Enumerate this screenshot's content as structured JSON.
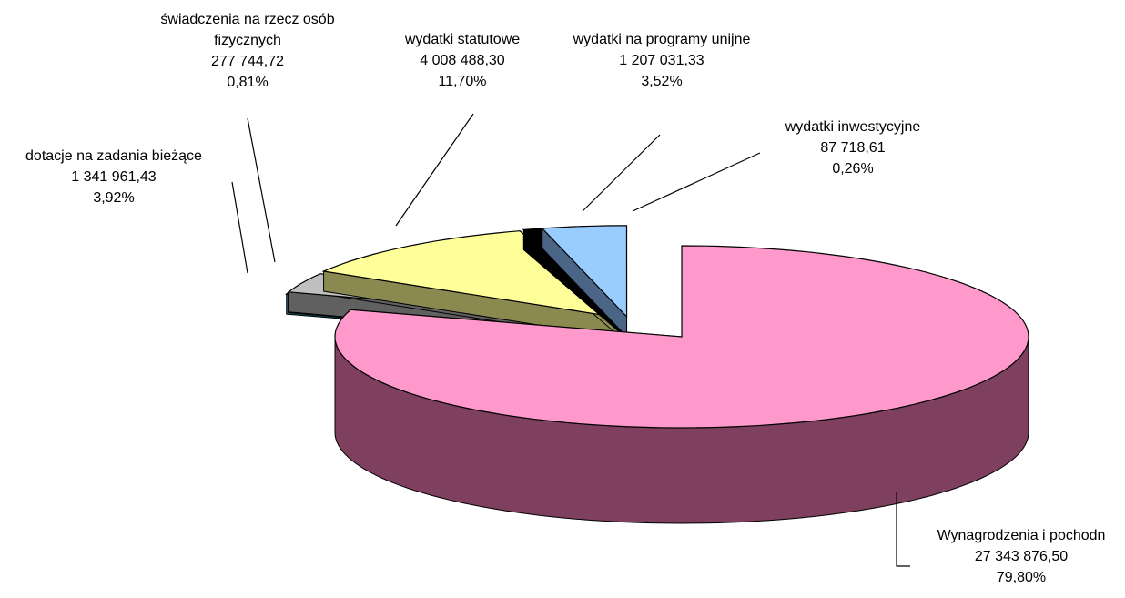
{
  "chart_data": {
    "type": "pie",
    "categories": [
      "Wynagrodzenia i pochodn",
      "wydatki inwestycyjne",
      "wydatki na programy unijne",
      "wydatki statutowe",
      "świadczenia na rzecz osób fizycznych",
      "dotacje na zadania bieżące"
    ],
    "values": [
      27343876.5,
      87718.61,
      1207031.33,
      4008488.3,
      277744.72,
      1341961.43
    ],
    "value_labels": [
      "27 343 876,50",
      "87 718,61",
      "1 207 031,33",
      "4 008 488,30",
      "277 744,72",
      "1 341 961,43"
    ],
    "percents": [
      79.8,
      0.26,
      3.52,
      11.7,
      0.81,
      3.92
    ],
    "percent_labels": [
      "79,80%",
      "0,26%",
      "3,52%",
      "11,70%",
      "0,81%",
      "3,92%"
    ],
    "colors": [
      "#ff99cc",
      "#33ccff",
      "#c0c0c0",
      "#ffff99",
      "#000000",
      "#99ccff"
    ],
    "side_colors": [
      "#7f4060",
      "#1a6680",
      "#606060",
      "#8a8a50",
      "#000000",
      "#4a6585"
    ]
  }
}
